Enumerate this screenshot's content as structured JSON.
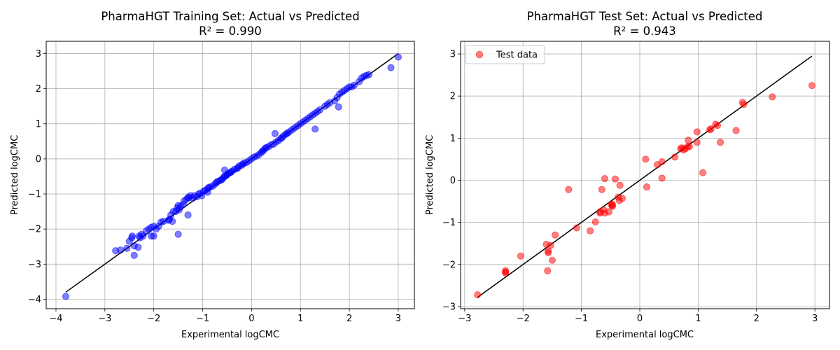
{
  "chart_data": [
    {
      "type": "scatter",
      "title": "PharmaHGT Training Set: Actual vs Predicted",
      "subtitle": "R² = 0.990",
      "xlabel": "Experimental logCMC",
      "ylabel": "Predicted logCMC",
      "xlim": [
        -4.2,
        3.33
      ],
      "ylim": [
        -4.27,
        3.35
      ],
      "xticks": [
        -4,
        -3,
        -2,
        -1,
        0,
        1,
        2,
        3
      ],
      "xtick_labels": [
        "−4",
        "−3",
        "−2",
        "−1",
        "0",
        "1",
        "2",
        "3"
      ],
      "yticks": [
        -4,
        -3,
        -2,
        -1,
        0,
        1,
        2,
        3
      ],
      "ytick_labels": [
        "−4",
        "−3",
        "−2",
        "−1",
        "0",
        "1",
        "2",
        "3"
      ],
      "grid": true,
      "colors": {
        "points": "#0000ff",
        "line": "#000000",
        "grid": "#b0b0b0"
      },
      "line": {
        "x": [
          -3.8,
          3.0
        ],
        "y": [
          -3.8,
          3.0
        ]
      },
      "series": [
        {
          "x": [
            -3.8,
            -2.78,
            -2.68,
            -2.55,
            -2.5,
            -2.45,
            -2.44,
            -2.4,
            -2.4,
            -2.32,
            -2.3,
            -2.28,
            -2.25,
            -2.22,
            -2.15,
            -2.1,
            -2.05,
            -2.0,
            -2.0,
            -1.95,
            -1.9,
            -1.85,
            -1.8,
            -1.7,
            -1.68,
            -1.65,
            -1.6,
            -1.55,
            -1.52,
            -1.5,
            -1.48,
            -1.45,
            -1.4,
            -1.38,
            -1.33,
            -1.3,
            -1.28,
            -1.25,
            -1.2,
            -1.17,
            -1.12,
            -1.08,
            -1.05,
            -1.02,
            -0.98,
            -0.95,
            -0.9,
            -0.88,
            -0.85,
            -0.8,
            -0.75,
            -0.72,
            -0.7,
            -0.65,
            -0.62,
            -0.6,
            -0.57,
            -0.55,
            -0.52,
            -0.5,
            -0.48,
            -0.45,
            -0.42,
            -0.4,
            -0.35,
            -0.3,
            -0.28,
            -0.25,
            -0.2,
            -0.18,
            -0.15,
            -0.1,
            -0.05,
            0.0,
            0.05,
            0.1,
            0.15,
            0.2,
            0.22,
            0.25,
            0.28,
            0.3,
            0.35,
            0.4,
            0.45,
            0.5,
            0.55,
            0.6,
            0.62,
            0.65,
            0.7,
            0.72,
            0.75,
            0.8,
            0.85,
            0.9,
            0.95,
            1.0,
            1.05,
            1.1,
            1.15,
            1.2,
            1.25,
            1.3,
            1.35,
            1.4,
            1.5,
            1.55,
            1.6,
            1.7,
            1.75,
            1.8,
            1.85,
            1.9,
            1.95,
            2.0,
            2.05,
            2.1,
            2.2,
            2.25,
            2.3,
            2.35,
            2.4,
            2.85,
            3.0,
            -1.5,
            -1.3,
            0.48,
            1.3,
            1.78,
            -0.55,
            -0.9,
            -1.62,
            -2.05
          ],
          "y": [
            -3.92,
            -2.62,
            -2.6,
            -2.55,
            -2.35,
            -2.25,
            -2.2,
            -2.75,
            -2.48,
            -2.52,
            -2.2,
            -2.25,
            -2.15,
            -2.2,
            -2.05,
            -2.0,
            -1.95,
            -2.2,
            -1.92,
            -2.0,
            -1.92,
            -1.8,
            -1.78,
            -1.75,
            -1.72,
            -1.6,
            -1.5,
            -1.5,
            -1.4,
            -1.33,
            -1.45,
            -1.35,
            -1.3,
            -1.2,
            -1.15,
            -1.1,
            -1.1,
            -1.05,
            -1.12,
            -1.05,
            -1.08,
            -1.0,
            -0.98,
            -1.05,
            -0.92,
            -0.9,
            -0.85,
            -0.82,
            -0.8,
            -0.78,
            -0.72,
            -0.68,
            -0.65,
            -0.62,
            -0.6,
            -0.58,
            -0.52,
            -0.5,
            -0.48,
            -0.45,
            -0.42,
            -0.4,
            -0.38,
            -0.35,
            -0.3,
            -0.28,
            -0.25,
            -0.2,
            -0.18,
            -0.15,
            -0.12,
            -0.1,
            -0.05,
            0.0,
            0.05,
            0.08,
            0.12,
            0.18,
            0.22,
            0.25,
            0.3,
            0.32,
            0.35,
            0.4,
            0.42,
            0.48,
            0.52,
            0.58,
            0.6,
            0.65,
            0.7,
            0.72,
            0.75,
            0.8,
            0.85,
            0.9,
            0.95,
            1.0,
            1.05,
            1.1,
            1.15,
            1.2,
            1.25,
            1.3,
            1.35,
            1.4,
            1.5,
            1.55,
            1.6,
            1.65,
            1.75,
            1.85,
            1.9,
            1.95,
            2.0,
            2.05,
            2.05,
            2.1,
            2.2,
            2.3,
            2.35,
            2.38,
            2.4,
            2.6,
            2.9,
            -2.15,
            -1.6,
            0.72,
            0.85,
            1.48,
            -0.32,
            -0.95,
            -1.78,
            -2.2
          ]
        }
      ]
    },
    {
      "type": "scatter",
      "title": "PharmaHGT Test Set: Actual vs Predicted",
      "subtitle": "R² = 0.943",
      "xlabel": "Experimental logCMC",
      "ylabel": "Predicted logCMC",
      "xlim": [
        -3.07,
        3.25
      ],
      "ylim": [
        -3.05,
        3.3
      ],
      "xticks": [
        -3,
        -2,
        -1,
        0,
        1,
        2,
        3
      ],
      "xtick_labels": [
        "−3",
        "−2",
        "−1",
        "0",
        "1",
        "2",
        "3"
      ],
      "yticks": [
        -3,
        -2,
        -1,
        0,
        1,
        2,
        3
      ],
      "ytick_labels": [
        "−3",
        "−2",
        "−1",
        "0",
        "1",
        "2",
        "3"
      ],
      "grid": true,
      "legend": "upper-left",
      "colors": {
        "points": "#ff0000",
        "line": "#000000",
        "grid": "#b0b0b0"
      },
      "line": {
        "x": [
          -2.78,
          2.95
        ],
        "y": [
          -2.78,
          2.95
        ]
      },
      "series": [
        {
          "name": "Test data",
          "x": [
            -2.78,
            -2.3,
            -2.3,
            -2.3,
            -2.04,
            -1.6,
            -1.58,
            -1.57,
            -1.57,
            -1.53,
            -1.5,
            -1.45,
            -1.08,
            -1.22,
            -0.85,
            -0.76,
            -0.68,
            -0.68,
            -0.65,
            -0.62,
            -0.6,
            -0.6,
            -0.53,
            -0.49,
            -0.47,
            -0.47,
            -0.47,
            -0.42,
            -0.37,
            -0.35,
            -0.34,
            -0.3,
            0.1,
            0.12,
            0.3,
            0.38,
            0.38,
            0.6,
            0.7,
            0.72,
            0.75,
            0.78,
            0.82,
            0.83,
            0.85,
            0.98,
            0.98,
            1.08,
            1.2,
            1.22,
            1.3,
            1.33,
            1.38,
            1.65,
            1.76,
            1.78,
            2.27,
            2.95
          ],
          "y": [
            -2.72,
            -2.15,
            -2.18,
            -2.2,
            -1.8,
            -1.52,
            -2.15,
            -1.72,
            -1.68,
            -1.55,
            -1.9,
            -1.3,
            -1.13,
            -0.22,
            -1.2,
            -0.99,
            -0.75,
            -0.78,
            -0.22,
            -0.7,
            -0.78,
            0.04,
            -0.75,
            -0.58,
            -0.6,
            -0.62,
            -0.57,
            0.03,
            -0.4,
            -0.48,
            -0.12,
            -0.43,
            0.5,
            -0.16,
            0.37,
            0.44,
            0.05,
            0.55,
            0.75,
            0.77,
            0.72,
            0.75,
            0.8,
            0.95,
            0.8,
            0.9,
            1.15,
            0.18,
            1.2,
            1.22,
            1.33,
            1.3,
            0.9,
            1.18,
            1.85,
            1.8,
            1.98,
            2.25
          ]
        }
      ]
    }
  ]
}
